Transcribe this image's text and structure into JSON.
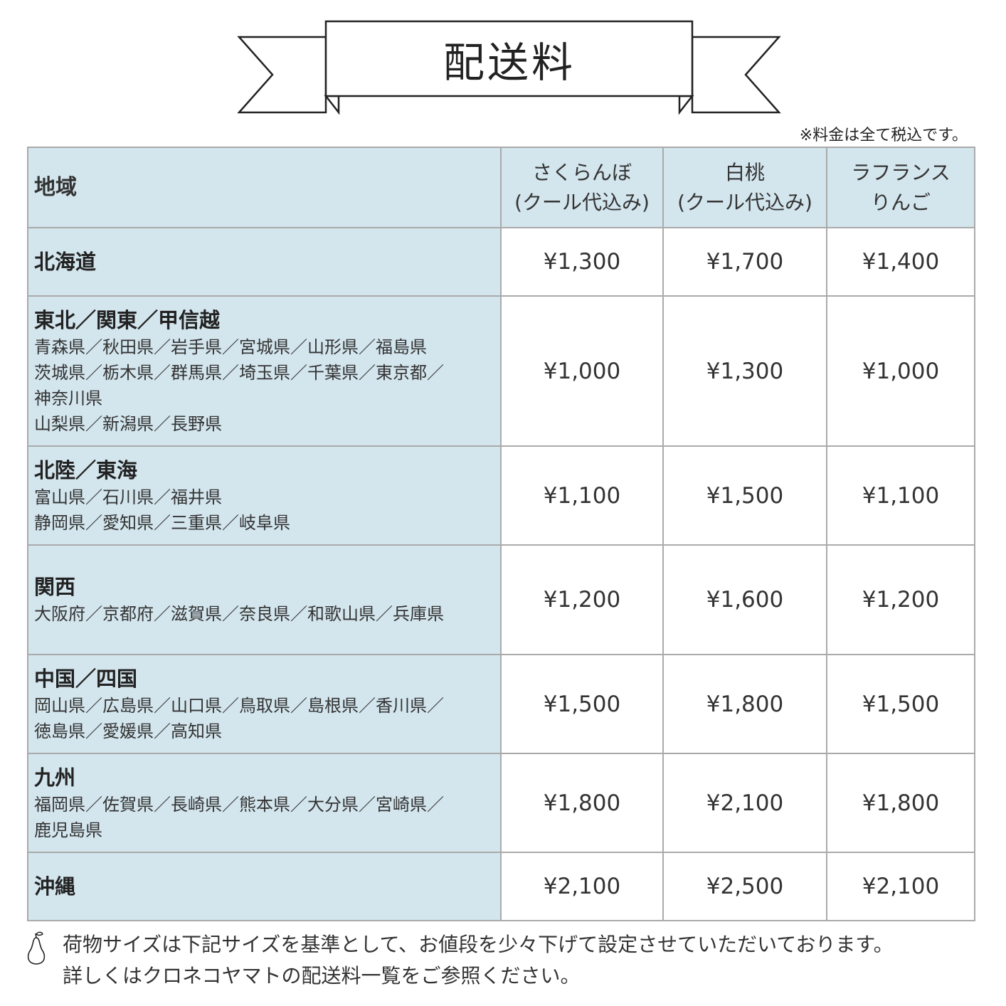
{
  "title": "配送料",
  "tax_note": "※料金は全て税込です。",
  "table": {
    "headers": [
      {
        "lines": [
          "地域"
        ]
      },
      {
        "lines": [
          "さくらんぼ",
          "(クール代込み)"
        ]
      },
      {
        "lines": [
          "白桃",
          "(クール代込み)"
        ]
      },
      {
        "lines": [
          "ラフランス",
          "りんご"
        ]
      }
    ],
    "rows": [
      {
        "region": "北海道",
        "prefectures": [],
        "prices": [
          "¥1,300",
          "¥1,700",
          "¥1,400"
        ]
      },
      {
        "region": "東北／関東／甲信越",
        "prefectures": [
          "青森県／秋田県／岩手県／宮城県／山形県／福島県",
          "茨城県／栃木県／群馬県／埼玉県／千葉県／東京都／",
          "神奈川県",
          "山梨県／新潟県／長野県"
        ],
        "prices": [
          "¥1,000",
          "¥1,300",
          "¥1,000"
        ]
      },
      {
        "region": "北陸／東海",
        "prefectures": [
          "富山県／石川県／福井県",
          "静岡県／愛知県／三重県／岐阜県"
        ],
        "prices": [
          "¥1,100",
          "¥1,500",
          "¥1,100"
        ]
      },
      {
        "region": "関西",
        "prefectures": [
          "大阪府／京都府／滋賀県／奈良県／和歌山県／兵庫県"
        ],
        "prices": [
          "¥1,200",
          "¥1,600",
          "¥1,200"
        ]
      },
      {
        "region": "中国／四国",
        "prefectures": [
          "岡山県／広島県／山口県／鳥取県／島根県／香川県／",
          "徳島県／愛媛県／高知県"
        ],
        "prices": [
          "¥1,500",
          "¥1,800",
          "¥1,500"
        ]
      },
      {
        "region": "九州",
        "prefectures": [
          "福岡県／佐賀県／長崎県／熊本県／大分県／宮崎県／",
          "鹿児島県"
        ],
        "prices": [
          "¥1,800",
          "¥2,100",
          "¥1,800"
        ]
      },
      {
        "region": "沖縄",
        "prefectures": [],
        "prices": [
          "¥2,100",
          "¥2,500",
          "¥2,100"
        ]
      }
    ]
  },
  "footer": {
    "icon": "pear-icon",
    "lines": [
      "荷物サイズは下記サイズを基準として、お値段を少々下げて設定させていただいております。",
      "詳しくはクロネコヤマトの配送料一覧をご参照ください。"
    ]
  },
  "colors": {
    "header_bg": "#d3e5ed",
    "border": "#aaaaaa"
  }
}
